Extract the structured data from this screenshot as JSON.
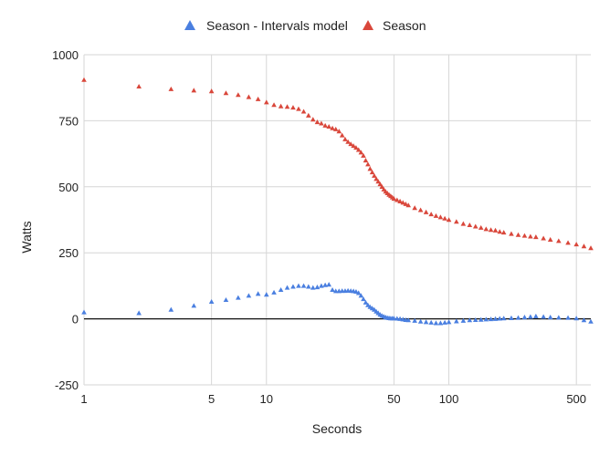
{
  "chart_data": {
    "type": "scatter",
    "title": "",
    "xlabel": "Seconds",
    "ylabel": "Watts",
    "x_scale": "log",
    "xlim": [
      1,
      600
    ],
    "ylim": [
      -250,
      1000
    ],
    "x_ticks": [
      1,
      5,
      10,
      50,
      100,
      500
    ],
    "y_ticks": [
      -250,
      0,
      250,
      500,
      750,
      1000
    ],
    "grid": true,
    "legend_position": "top",
    "series": [
      {
        "name": "Season - Intervals model",
        "color": "#4a7fe0",
        "marker": "triangle",
        "x": [
          1,
          2,
          3,
          4,
          5,
          6,
          7,
          8,
          9,
          10,
          11,
          12,
          13,
          14,
          15,
          16,
          17,
          18,
          19,
          20,
          21,
          22,
          23,
          24,
          25,
          26,
          27,
          28,
          29,
          30,
          31,
          32,
          33,
          34,
          35,
          36,
          37,
          38,
          39,
          40,
          41,
          42,
          43,
          44,
          45,
          46,
          47,
          48,
          49,
          50,
          52,
          54,
          56,
          58,
          60,
          65,
          70,
          75,
          80,
          85,
          90,
          95,
          100,
          110,
          120,
          130,
          140,
          150,
          160,
          170,
          180,
          190,
          200,
          220,
          240,
          260,
          280,
          300,
          330,
          360,
          400,
          450,
          500,
          550,
          600
        ],
        "y": [
          25,
          22,
          35,
          50,
          65,
          72,
          80,
          88,
          95,
          92,
          100,
          110,
          118,
          122,
          125,
          125,
          122,
          118,
          120,
          125,
          128,
          130,
          110,
          105,
          105,
          106,
          106,
          107,
          106,
          105,
          103,
          98,
          88,
          75,
          62,
          52,
          45,
          40,
          35,
          28,
          22,
          16,
          12,
          9,
          6,
          4,
          3,
          2,
          2,
          2,
          1,
          0,
          -2,
          -4,
          -5,
          -7,
          -10,
          -12,
          -14,
          -16,
          -16,
          -14,
          -12,
          -9,
          -7,
          -5,
          -4,
          -3,
          -2,
          -1,
          0,
          1,
          2,
          3,
          4,
          6,
          8,
          10,
          8,
          6,
          5,
          4,
          2,
          -5,
          -10
        ]
      },
      {
        "name": "Season",
        "color": "#d9473b",
        "marker": "triangle",
        "x": [
          1,
          2,
          3,
          4,
          5,
          6,
          7,
          8,
          9,
          10,
          11,
          12,
          13,
          14,
          15,
          16,
          17,
          18,
          19,
          20,
          21,
          22,
          23,
          24,
          25,
          26,
          27,
          28,
          29,
          30,
          31,
          32,
          33,
          34,
          35,
          36,
          37,
          38,
          39,
          40,
          41,
          42,
          43,
          44,
          45,
          46,
          47,
          48,
          49,
          50,
          52,
          54,
          56,
          58,
          60,
          65,
          70,
          75,
          80,
          85,
          90,
          95,
          100,
          110,
          120,
          130,
          140,
          150,
          160,
          170,
          180,
          190,
          200,
          220,
          240,
          260,
          280,
          300,
          330,
          360,
          400,
          450,
          500,
          550,
          600
        ],
        "y": [
          905,
          880,
          870,
          865,
          862,
          855,
          848,
          840,
          832,
          820,
          810,
          805,
          803,
          800,
          795,
          785,
          770,
          755,
          745,
          740,
          732,
          728,
          722,
          718,
          710,
          695,
          680,
          670,
          662,
          655,
          648,
          640,
          630,
          618,
          600,
          585,
          568,
          555,
          542,
          530,
          520,
          510,
          500,
          490,
          482,
          476,
          470,
          465,
          460,
          455,
          450,
          445,
          440,
          435,
          430,
          420,
          412,
          404,
          396,
          390,
          385,
          380,
          375,
          368,
          360,
          355,
          350,
          345,
          340,
          337,
          335,
          330,
          327,
          322,
          318,
          315,
          312,
          310,
          305,
          300,
          295,
          288,
          282,
          275,
          268
        ]
      }
    ]
  }
}
